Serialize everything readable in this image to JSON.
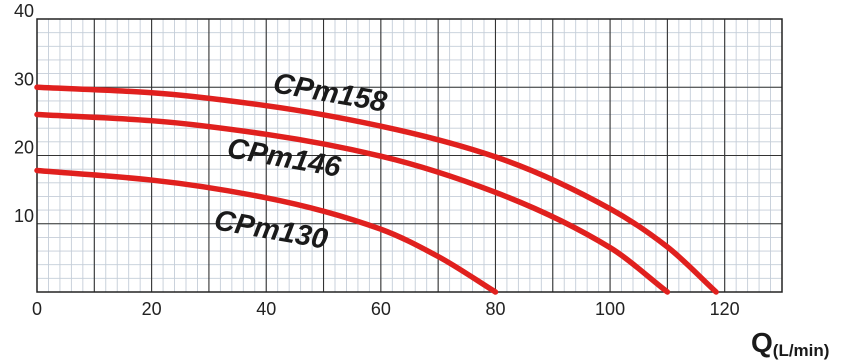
{
  "chart_data": {
    "type": "line",
    "xlabel_main": "Q",
    "xlabel_unit": "(L/min)",
    "ylabel": "",
    "xlim": [
      0,
      130
    ],
    "ylim": [
      0,
      40
    ],
    "x_ticks": [
      0,
      20,
      40,
      60,
      80,
      100,
      120
    ],
    "y_ticks": [
      10,
      20,
      30,
      40
    ],
    "x_tick_labels": [
      "0",
      "20",
      "40",
      "60",
      "80",
      "100",
      "120"
    ],
    "y_tick_labels": [
      "10",
      "20",
      "30",
      "40"
    ],
    "grid": true,
    "curve_color": "#e0201e",
    "series": [
      {
        "name": "CPm158",
        "points": [
          [
            0,
            30.0
          ],
          [
            20,
            29.2
          ],
          [
            40,
            27.3
          ],
          [
            60,
            24.3
          ],
          [
            80,
            19.8
          ],
          [
            100,
            12.2
          ],
          [
            110,
            6.6
          ],
          [
            118.5,
            0
          ]
        ]
      },
      {
        "name": "CPm146",
        "points": [
          [
            0,
            26.0
          ],
          [
            20,
            25.1
          ],
          [
            40,
            23.1
          ],
          [
            60,
            19.9
          ],
          [
            80,
            14.6
          ],
          [
            100,
            6.5
          ],
          [
            110,
            0
          ]
        ]
      },
      {
        "name": "CPm130",
        "points": [
          [
            0,
            17.8
          ],
          [
            20,
            16.4
          ],
          [
            40,
            13.8
          ],
          [
            60,
            9.2
          ],
          [
            70,
            5.2
          ],
          [
            80,
            0
          ]
        ]
      }
    ]
  }
}
